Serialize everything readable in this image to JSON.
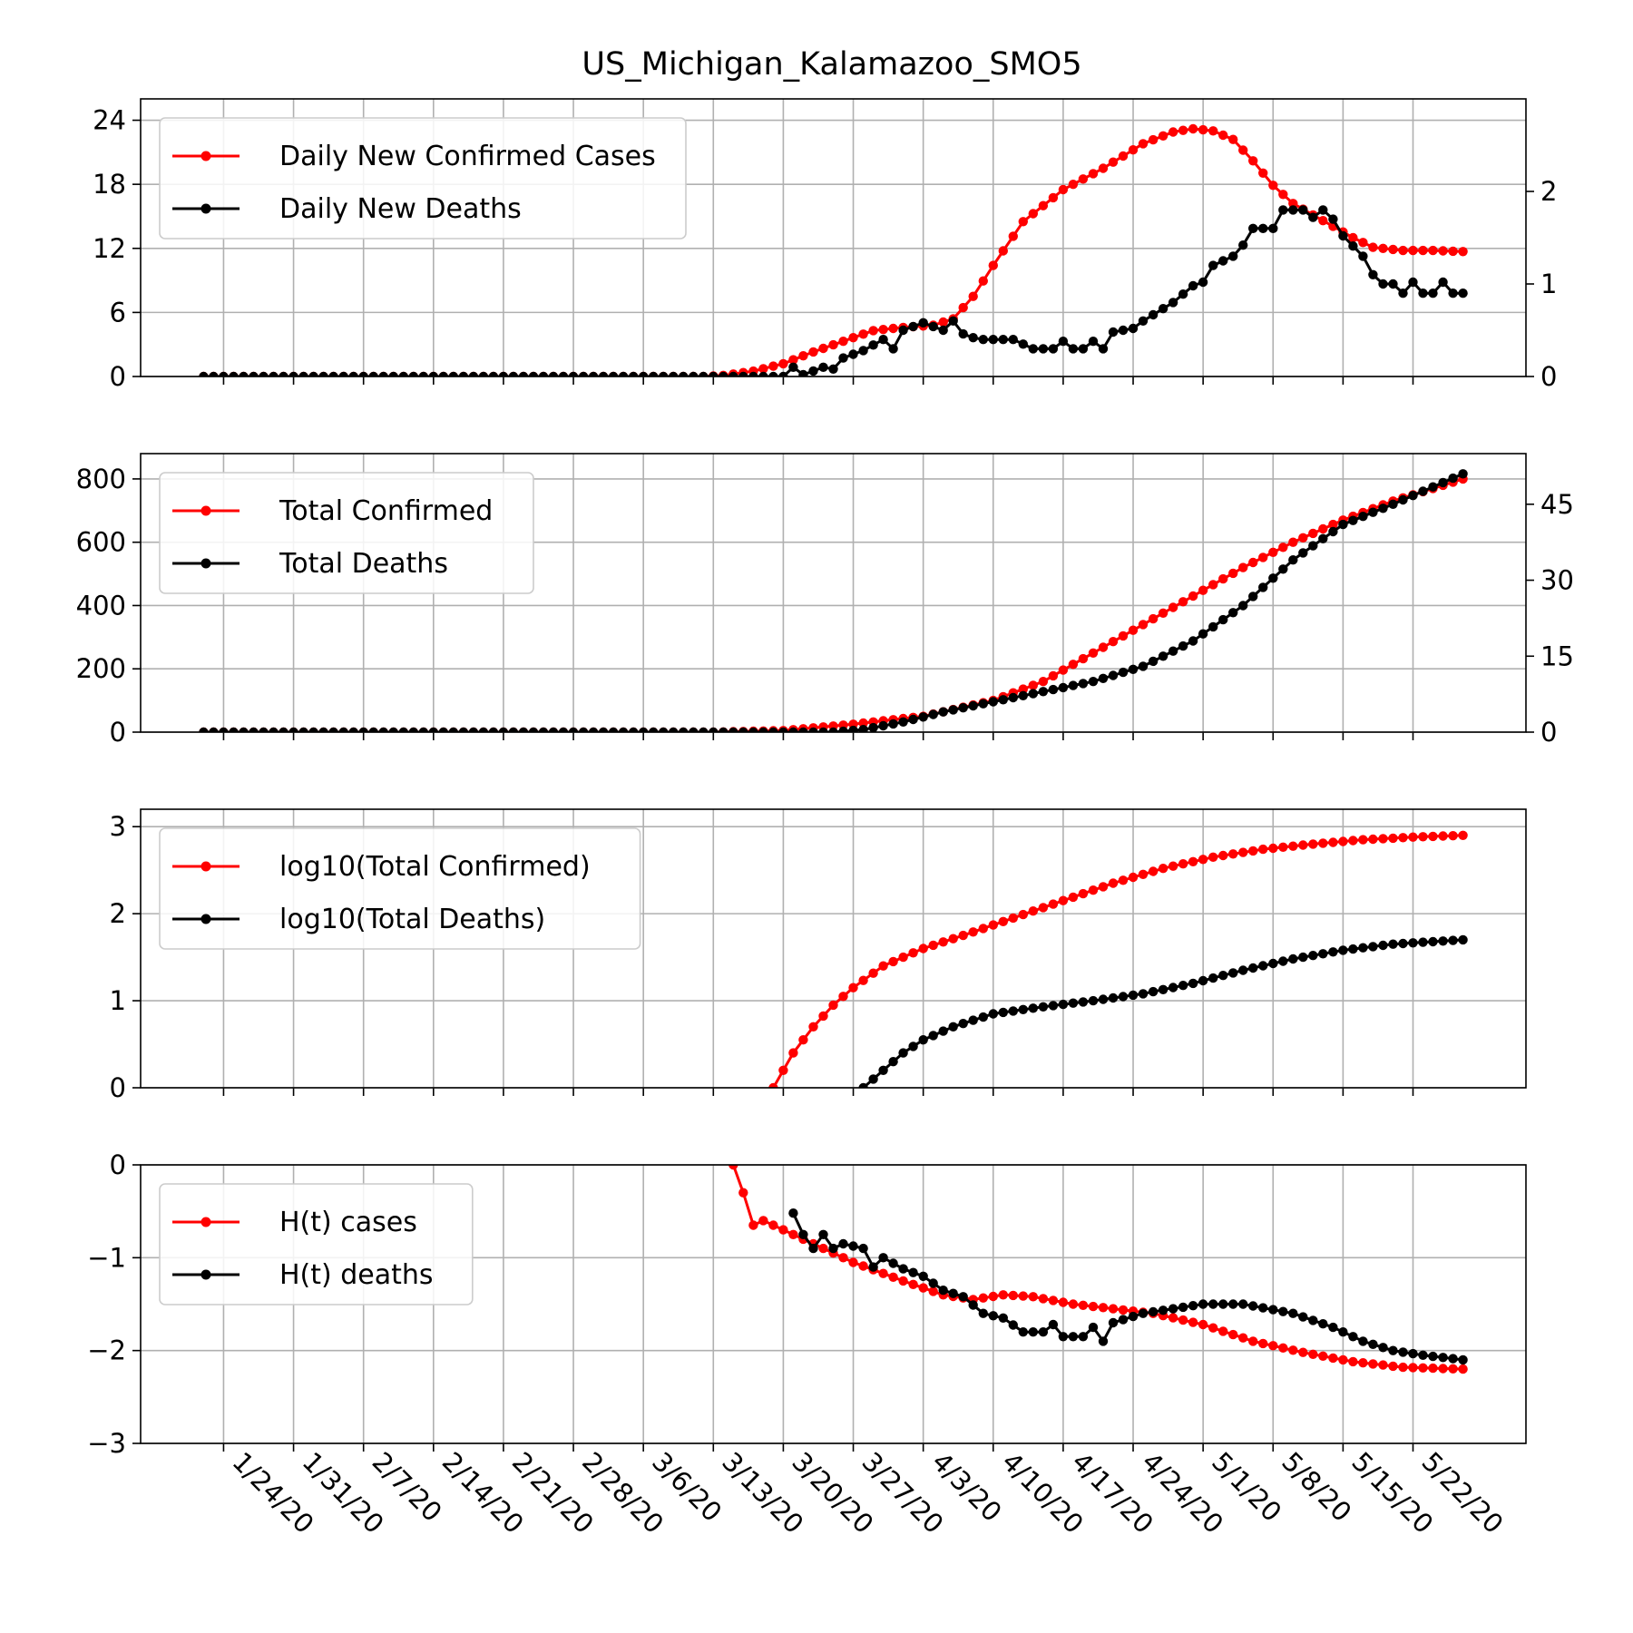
{
  "chart_data": {
    "title": "US_Michigan_Kalamazoo_SMO5",
    "x_dates": [
      "1/24/20",
      "1/31/20",
      "2/7/20",
      "2/14/20",
      "2/21/20",
      "2/28/20",
      "3/6/20",
      "3/13/20",
      "3/20/20",
      "3/27/20",
      "4/3/20",
      "4/10/20",
      "4/17/20",
      "4/24/20",
      "5/1/20",
      "5/8/20",
      "5/15/20",
      "5/22/20"
    ],
    "date_range": {
      "first": "1/22/20",
      "last": "5/27/20"
    },
    "colors": {
      "cases": "#ff0000",
      "deaths": "#000000",
      "grid": "#b0b0b0"
    },
    "panels": [
      {
        "type": "line",
        "left_axis": {
          "ylim": [
            0,
            26
          ],
          "ticks": [
            0,
            6,
            12,
            18,
            24
          ]
        },
        "right_axis": {
          "ylim": [
            0,
            3
          ],
          "ticks": [
            0,
            1,
            2
          ]
        },
        "legend": [
          "Daily New Confirmed Cases",
          "Daily New Deaths"
        ],
        "series": [
          {
            "name": "Daily New Confirmed Cases",
            "axis": "left",
            "points": [
              [
                "1/22/20",
                0
              ],
              [
                "3/12/20",
                0
              ],
              [
                "3/14/20",
                0.1
              ],
              [
                "3/17/20",
                0.5
              ],
              [
                "3/20/20",
                1.2
              ],
              [
                "3/23/20",
                2.3
              ],
              [
                "3/26/20",
                3.3
              ],
              [
                "3/29/20",
                4.3
              ],
              [
                "4/1/20",
                4.6
              ],
              [
                "4/4/20",
                4.8
              ],
              [
                "4/6/20",
                5.4
              ],
              [
                "4/8/20",
                7.5
              ],
              [
                "4/10/20",
                10.4
              ],
              [
                "4/13/20",
                14.5
              ],
              [
                "4/17/20",
                17.5
              ],
              [
                "4/21/20",
                19.5
              ],
              [
                "4/25/20",
                21.8
              ],
              [
                "4/28/20",
                22.9
              ],
              [
                "4/30/20",
                23.2
              ],
              [
                "5/2/20",
                23.0
              ],
              [
                "5/4/20",
                22.2
              ],
              [
                "5/6/20",
                20.2
              ],
              [
                "5/8/20",
                17.9
              ],
              [
                "5/10/20",
                16.2
              ],
              [
                "5/13/20",
                14.6
              ],
              [
                "5/16/20",
                13.0
              ],
              [
                "5/18/20",
                12.1
              ],
              [
                "5/21/20",
                11.8
              ],
              [
                "5/24/20",
                11.8
              ],
              [
                "5/27/20",
                11.7
              ]
            ]
          },
          {
            "name": "Daily New Deaths",
            "axis": "right",
            "points": [
              [
                "1/22/20",
                0
              ],
              [
                "3/20/20",
                0
              ],
              [
                "3/21/20",
                0.1
              ],
              [
                "3/22/20",
                0.02
              ],
              [
                "3/24/20",
                0.1
              ],
              [
                "3/25/20",
                0.08
              ],
              [
                "3/26/20",
                0.2
              ],
              [
                "3/28/20",
                0.28
              ],
              [
                "3/30/20",
                0.4
              ],
              [
                "3/31/20",
                0.3
              ],
              [
                "4/1/20",
                0.5
              ],
              [
                "4/3/20",
                0.58
              ],
              [
                "4/5/20",
                0.5
              ],
              [
                "4/6/20",
                0.6
              ],
              [
                "4/7/20",
                0.46
              ],
              [
                "4/8/20",
                0.42
              ],
              [
                "4/9/20",
                0.4
              ],
              [
                "4/12/20",
                0.4
              ],
              [
                "4/14/20",
                0.3
              ],
              [
                "4/15/20",
                0.3
              ],
              [
                "4/16/20",
                0.3
              ],
              [
                "4/17/20",
                0.38
              ],
              [
                "4/18/20",
                0.3
              ],
              [
                "4/19/20",
                0.3
              ],
              [
                "4/20/20",
                0.38
              ],
              [
                "4/21/20",
                0.3
              ],
              [
                "4/22/20",
                0.48
              ],
              [
                "4/24/20",
                0.52
              ],
              [
                "4/25/20",
                0.6
              ],
              [
                "4/28/20",
                0.8
              ],
              [
                "4/30/20",
                0.98
              ],
              [
                "5/1/20",
                1.02
              ],
              [
                "5/2/20",
                1.2
              ],
              [
                "5/4/20",
                1.3
              ],
              [
                "5/5/20",
                1.42
              ],
              [
                "5/6/20",
                1.6
              ],
              [
                "5/8/20",
                1.6
              ],
              [
                "5/9/20",
                1.8
              ],
              [
                "5/11/20",
                1.8
              ],
              [
                "5/12/20",
                1.72
              ],
              [
                "5/13/20",
                1.8
              ],
              [
                "5/14/20",
                1.7
              ],
              [
                "5/15/20",
                1.52
              ],
              [
                "5/17/20",
                1.3
              ],
              [
                "5/18/20",
                1.1
              ],
              [
                "5/19/20",
                1.0
              ],
              [
                "5/20/20",
                1.0
              ],
              [
                "5/21/20",
                0.9
              ],
              [
                "5/22/20",
                1.02
              ],
              [
                "5/23/20",
                0.9
              ],
              [
                "5/24/20",
                0.9
              ],
              [
                "5/25/20",
                1.02
              ],
              [
                "5/26/20",
                0.9
              ],
              [
                "5/27/20",
                0.9
              ]
            ]
          }
        ]
      },
      {
        "type": "line",
        "left_axis": {
          "ylim": [
            0,
            880
          ],
          "ticks": [
            0,
            200,
            400,
            600,
            800
          ]
        },
        "right_axis": {
          "ylim": [
            0,
            55
          ],
          "ticks": [
            0,
            15,
            30,
            45
          ]
        },
        "legend": [
          "Total Confirmed",
          "Total Deaths"
        ],
        "series": [
          {
            "name": "Total Confirmed",
            "axis": "left",
            "points": [
              [
                "1/22/20",
                0
              ],
              [
                "3/13/20",
                0
              ],
              [
                "3/20/20",
                5
              ],
              [
                "3/27/20",
                25
              ],
              [
                "4/3/20",
                50
              ],
              [
                "4/10/20",
                100
              ],
              [
                "4/15/20",
                160
              ],
              [
                "4/20/20",
                250
              ],
              [
                "4/25/20",
                340
              ],
              [
                "4/30/20",
                430
              ],
              [
                "5/5/20",
                520
              ],
              [
                "5/10/20",
                600
              ],
              [
                "5/15/20",
                670
              ],
              [
                "5/20/20",
                730
              ],
              [
                "5/27/20",
                800
              ]
            ]
          },
          {
            "name": "Total Deaths",
            "axis": "right",
            "points": [
              [
                "1/22/20",
                0
              ],
              [
                "3/25/20",
                0
              ],
              [
                "3/28/20",
                0.5
              ],
              [
                "4/1/20",
                2
              ],
              [
                "4/5/20",
                4
              ],
              [
                "4/10/20",
                6
              ],
              [
                "4/15/20",
                8
              ],
              [
                "4/20/20",
                10
              ],
              [
                "4/25/20",
                13
              ],
              [
                "4/30/20",
                18
              ],
              [
                "5/5/20",
                25
              ],
              [
                "5/10/20",
                34
              ],
              [
                "5/15/20",
                41
              ],
              [
                "5/20/20",
                45
              ],
              [
                "5/27/20",
                51
              ]
            ]
          }
        ]
      },
      {
        "type": "line",
        "left_axis": {
          "ylim": [
            0,
            3.2
          ],
          "ticks": [
            0,
            1,
            2,
            3
          ]
        },
        "legend": [
          "log10(Total Confirmed)",
          "log10(Total Deaths)"
        ],
        "series": [
          {
            "name": "log10(Total Confirmed)",
            "axis": "left",
            "points": [
              [
                "3/19/20",
                0
              ],
              [
                "3/21/20",
                0.4
              ],
              [
                "3/23/20",
                0.7
              ],
              [
                "3/25/20",
                0.95
              ],
              [
                "3/27/20",
                1.15
              ],
              [
                "3/30/20",
                1.4
              ],
              [
                "4/3/20",
                1.6
              ],
              [
                "4/7/20",
                1.75
              ],
              [
                "4/12/20",
                1.95
              ],
              [
                "4/17/20",
                2.15
              ],
              [
                "4/22/20",
                2.35
              ],
              [
                "4/27/20",
                2.52
              ],
              [
                "5/2/20",
                2.65
              ],
              [
                "5/7/20",
                2.74
              ],
              [
                "5/12/20",
                2.8
              ],
              [
                "5/17/20",
                2.85
              ],
              [
                "5/22/20",
                2.88
              ],
              [
                "5/27/20",
                2.9
              ]
            ]
          },
          {
            "name": "log10(Total Deaths)",
            "axis": "right",
            "points": [
              [
                "3/28/20",
                0
              ],
              [
                "3/30/20",
                0.2
              ],
              [
                "4/1/20",
                0.4
              ],
              [
                "4/3/20",
                0.55
              ],
              [
                "4/6/20",
                0.7
              ],
              [
                "4/10/20",
                0.85
              ],
              [
                "4/15/20",
                0.93
              ],
              [
                "4/20/20",
                1.0
              ],
              [
                "4/25/20",
                1.08
              ],
              [
                "4/30/20",
                1.2
              ],
              [
                "5/5/20",
                1.35
              ],
              [
                "5/10/20",
                1.48
              ],
              [
                "5/15/20",
                1.58
              ],
              [
                "5/20/20",
                1.65
              ],
              [
                "5/27/20",
                1.7
              ]
            ]
          }
        ]
      },
      {
        "type": "line",
        "left_axis": {
          "ylim": [
            -3,
            0
          ],
          "ticks": [
            -3,
            -2,
            -1,
            0
          ]
        },
        "legend": [
          "H(t) cases",
          "H(t) deaths"
        ],
        "series": [
          {
            "name": "H(t) cases",
            "axis": "left",
            "points": [
              [
                "3/15/20",
                0.0
              ],
              [
                "3/16/20",
                -0.3
              ],
              [
                "3/17/20",
                -0.65
              ],
              [
                "3/18/20",
                -0.6
              ],
              [
                "3/20/20",
                -0.7
              ],
              [
                "3/23/20",
                -0.85
              ],
              [
                "3/27/20",
                -1.05
              ],
              [
                "4/1/20",
                -1.25
              ],
              [
                "4/5/20",
                -1.4
              ],
              [
                "4/8/20",
                -1.45
              ],
              [
                "4/11/20",
                -1.4
              ],
              [
                "4/14/20",
                -1.42
              ],
              [
                "4/18/20",
                -1.5
              ],
              [
                "4/22/20",
                -1.55
              ],
              [
                "4/26/20",
                -1.6
              ],
              [
                "5/1/20",
                -1.72
              ],
              [
                "5/6/20",
                -1.9
              ],
              [
                "5/11/20",
                -2.02
              ],
              [
                "5/16/20",
                -2.12
              ],
              [
                "5/21/20",
                -2.18
              ],
              [
                "5/27/20",
                -2.2
              ]
            ]
          },
          {
            "name": "H(t) deaths",
            "axis": "left",
            "points": [
              [
                "3/21/20",
                -0.52
              ],
              [
                "3/22/20",
                -0.75
              ],
              [
                "3/23/20",
                -0.9
              ],
              [
                "3/24/20",
                -0.75
              ],
              [
                "3/25/20",
                -0.9
              ],
              [
                "3/26/20",
                -0.85
              ],
              [
                "3/28/20",
                -0.9
              ],
              [
                "3/29/20",
                -1.1
              ],
              [
                "3/30/20",
                -1.0
              ],
              [
                "4/1/20",
                -1.12
              ],
              [
                "4/3/20",
                -1.2
              ],
              [
                "4/5/20",
                -1.35
              ],
              [
                "4/7/20",
                -1.42
              ],
              [
                "4/9/20",
                -1.6
              ],
              [
                "4/11/20",
                -1.65
              ],
              [
                "4/13/20",
                -1.8
              ],
              [
                "4/15/20",
                -1.8
              ],
              [
                "4/16/20",
                -1.72
              ],
              [
                "4/17/20",
                -1.85
              ],
              [
                "4/19/20",
                -1.85
              ],
              [
                "4/20/20",
                -1.75
              ],
              [
                "4/21/20",
                -1.9
              ],
              [
                "4/22/20",
                -1.7
              ],
              [
                "4/25/20",
                -1.6
              ],
              [
                "4/28/20",
                -1.55
              ],
              [
                "5/1/20",
                -1.5
              ],
              [
                "5/5/20",
                -1.5
              ],
              [
                "5/10/20",
                -1.6
              ],
              [
                "5/14/20",
                -1.75
              ],
              [
                "5/17/20",
                -1.9
              ],
              [
                "5/20/20",
                -2.0
              ],
              [
                "5/23/20",
                -2.05
              ],
              [
                "5/27/20",
                -2.1
              ]
            ]
          }
        ]
      }
    ]
  }
}
